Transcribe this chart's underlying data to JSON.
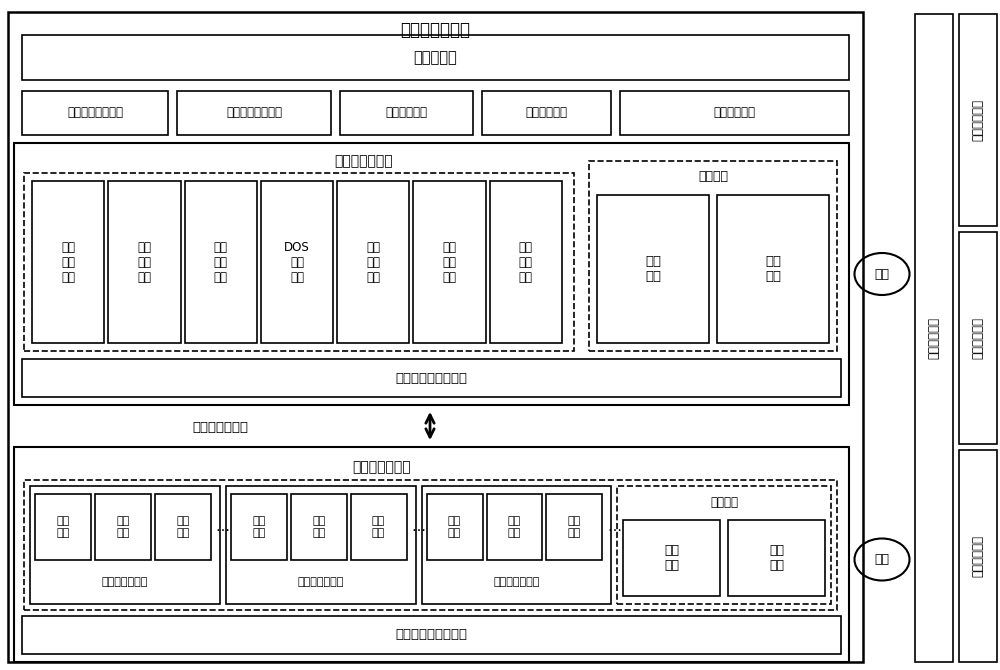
{
  "bg_color": "#ffffff",
  "main_title": "攻防指控子系统",
  "viz_module": "可视化模块",
  "modules5": [
    "系统参数配置模块",
    "业务环境控制模块",
    "用户管理模块",
    "任务管理模块",
    "资源管理模块"
  ],
  "attack_title": "攻击模拟子系统",
  "tools7": [
    "扫描\n探测\n工具",
    "漏洞\n利用\n工具",
    "远程\n控守\n工具",
    "DOS\n攻击\n工具",
    "漏洞\n挖掘\n工具",
    "内网\n渗透\n工具",
    "密码\n破解\n工具"
  ],
  "toolkit_title": "工具套件",
  "toolkit_items": [
    "临机\n取证",
    "密取\n武器"
  ],
  "virt_module": "虚拟化仿真支撑模块",
  "dataflow": "网络攻防数据流",
  "env_title": "环境仿真子系统",
  "env1_title": "互联网靶场环境",
  "env1_items": [
    "门户\n官网",
    "社交\n媒体",
    "电商\n平台"
  ],
  "env2_title": "工控网靶场环境",
  "env2_items": [
    "实验\n平台",
    "移动\n靶场",
    "专网\n仿真"
  ],
  "env3_title": "物联网靶场环境",
  "env3_items": [
    "视频\n监控",
    "智能\n交通",
    "门禁\n网络"
  ],
  "honeypot_title": "蜜罐装备",
  "honeypot_items": [
    "主机\n蜜罐",
    "应用\n蜜罐"
  ],
  "probe": "探针",
  "data_collect": "数据采集模块",
  "right_modules": [
    "数据分析模块",
    "态势感知模块",
    "效果评估模块"
  ]
}
